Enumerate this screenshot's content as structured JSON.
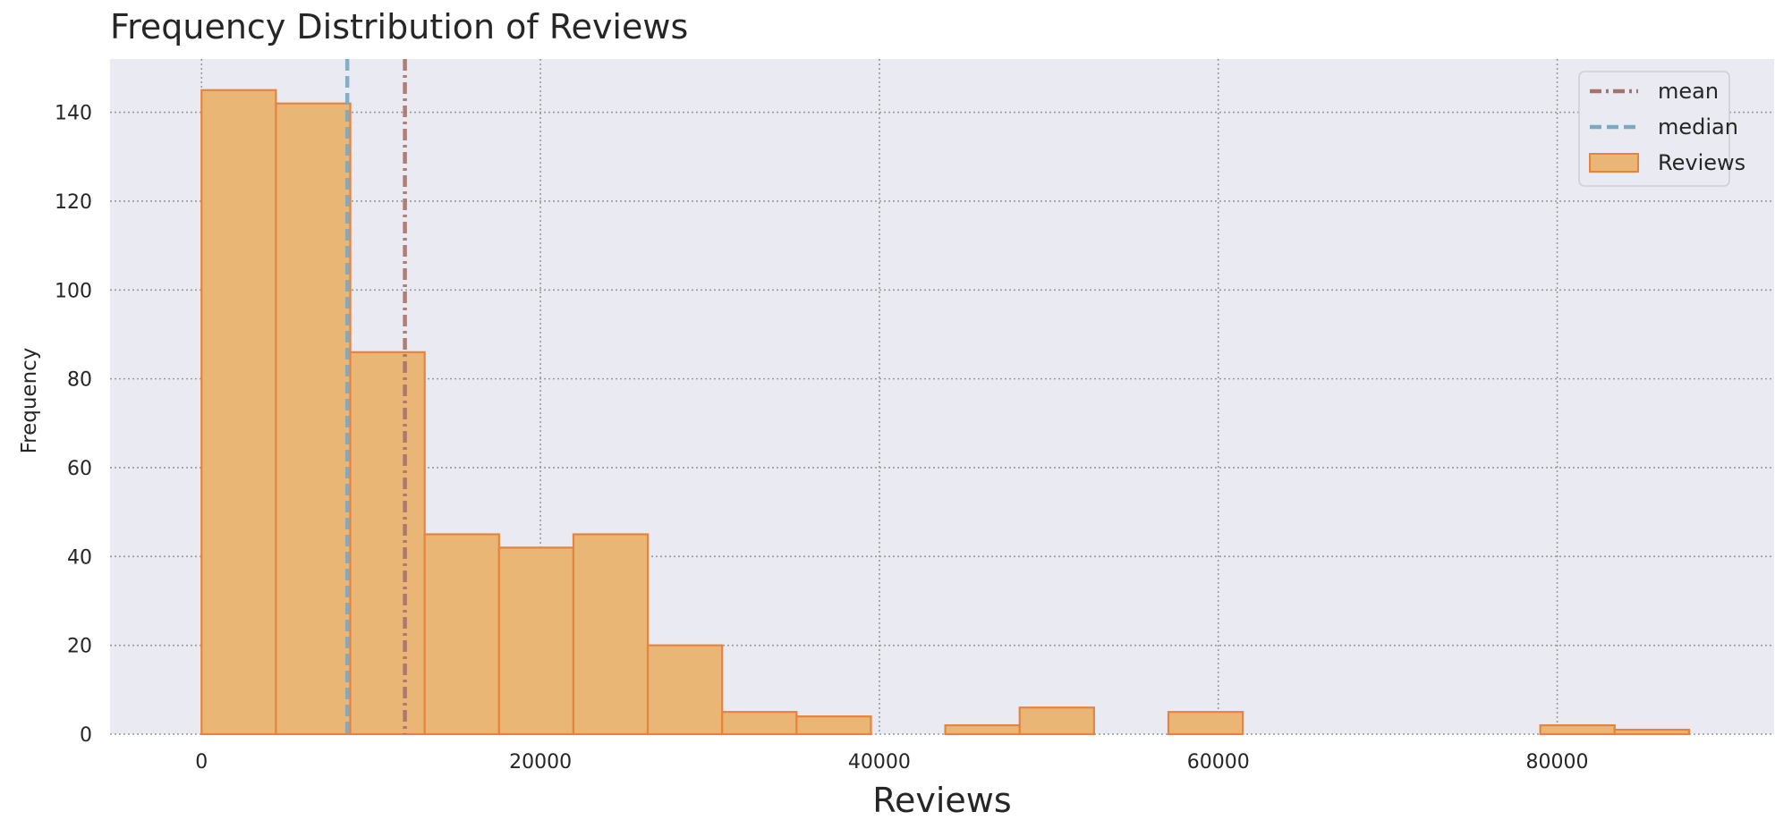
{
  "chart_data": {
    "type": "bar",
    "title": "Frequency Distribution of Reviews",
    "xlabel": "Reviews",
    "ylabel": "Frequency",
    "xlim": [
      -5400,
      92800
    ],
    "ylim": [
      0,
      152
    ],
    "xticks": [
      0,
      20000,
      40000,
      60000,
      80000
    ],
    "yticks": [
      0,
      20,
      40,
      60,
      80,
      100,
      120,
      140
    ],
    "grid": true,
    "legend_position": "top-right",
    "bin_edges": [
      0,
      4389,
      8778,
      13167,
      17556,
      21945,
      26334,
      30723,
      35112,
      39501,
      43890,
      48279,
      52668,
      57057,
      61446,
      65835,
      70224,
      74613,
      79002,
      83391,
      87780
    ],
    "series": [
      {
        "name": "Reviews",
        "type": "histogram",
        "color": "#eab676",
        "edge_color": "#e6843f",
        "values": [
          145,
          142,
          86,
          45,
          42,
          45,
          20,
          5,
          4,
          0,
          2,
          6,
          0,
          5,
          0,
          0,
          0,
          0,
          2,
          1
        ]
      },
      {
        "name": "mean",
        "type": "vline",
        "x": 12000,
        "color": "#a8726a",
        "dash": "dashdot"
      },
      {
        "name": "median",
        "type": "vline",
        "x": 8600,
        "color": "#79a9c4",
        "dash": "dashed"
      }
    ],
    "background": "#eaeaf2"
  }
}
